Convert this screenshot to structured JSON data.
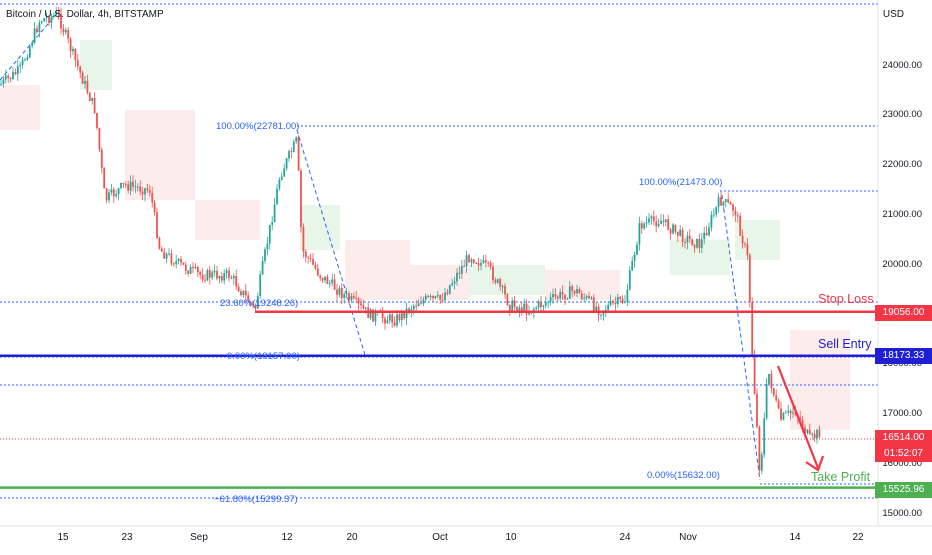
{
  "header": {
    "title": "Bitcoin / U.S. Dollar, 4h, BITSTAMP",
    "currency": "USD"
  },
  "price_labels": [
    "24000.00",
    "23000.00",
    "22000.00",
    "21000.00",
    "20000.00",
    "19000.00",
    "18000.00",
    "17000.00",
    "16000.00",
    "15000.00"
  ],
  "date_labels": [
    "15",
    "23",
    "Sep",
    "12",
    "20",
    "Oct",
    "10",
    "24",
    "Nov",
    "14",
    "22"
  ],
  "tags": {
    "stop_loss": {
      "value": "19056.00",
      "color": "#f23645"
    },
    "sell_entry": {
      "value": "18173.33",
      "color": "#1f1fd6"
    },
    "current": {
      "value": "16514.00",
      "countdown": "01:52:07",
      "color": "#f23645"
    },
    "take_profit": {
      "value": "15525.96",
      "color": "#4caf50"
    }
  },
  "annotations": {
    "stop_loss": "Stop Loss",
    "sell_entry": "Sell Entry",
    "take_profit": "Take Profit"
  },
  "fib_labels": {
    "top_100": "100.00%(22781.00)",
    "top_236": "23.60%(19248.26)",
    "top_0": "0.00%(18157.00)",
    "right_100": "100.00%(21473.00)",
    "right_0": "0.00%(15632.00)",
    "ext_618": "−61.80%(15299.37)"
  },
  "colors": {
    "up": "#26a69a",
    "down": "#ef5350",
    "fib": "#2962ff",
    "cloud_green": "#e8f5e9",
    "cloud_red": "#fdecec"
  }
}
